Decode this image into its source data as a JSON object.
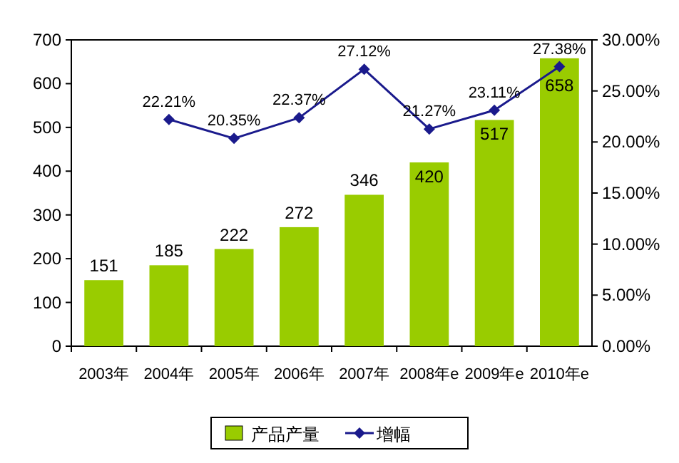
{
  "chart_data": {
    "type": "bar",
    "categories": [
      "2003年",
      "2004年",
      "2005年",
      "2006年",
      "2007年",
      "2008年e",
      "2009年e",
      "2010年e"
    ],
    "series": [
      {
        "name": "产品产量",
        "color": "#99cc00",
        "values": [
          151,
          185,
          222,
          272,
          346,
          420,
          517,
          658
        ],
        "value_labels": [
          "151",
          "185",
          "222",
          "272",
          "346",
          "420",
          "517",
          "658"
        ]
      },
      {
        "name": "增幅",
        "type": "line",
        "axis": "y2",
        "color": "#1a1a8c",
        "marker": "diamond",
        "values": [
          null,
          22.21,
          20.35,
          22.37,
          27.12,
          21.27,
          23.11,
          27.38
        ],
        "value_labels": [
          null,
          "22.21%",
          "20.35%",
          "22.37%",
          "27.12%",
          "21.27%",
          "23.11%",
          "27.38%"
        ]
      }
    ],
    "ylim": [
      0,
      700
    ],
    "yticks": [
      0,
      100,
      200,
      300,
      400,
      500,
      600,
      700
    ],
    "y2lim": [
      0,
      30
    ],
    "y2ticks": [
      {
        "value": 0,
        "label": "0.00%"
      },
      {
        "value": 5,
        "label": "5.00%"
      },
      {
        "value": 10,
        "label": "10.00%"
      },
      {
        "value": 15,
        "label": "15.00%"
      },
      {
        "value": 20,
        "label": "20.00%"
      },
      {
        "value": 25,
        "label": "25.00%"
      },
      {
        "value": 30,
        "label": "30.00%"
      }
    ],
    "legend": "bottom",
    "grid": false
  }
}
